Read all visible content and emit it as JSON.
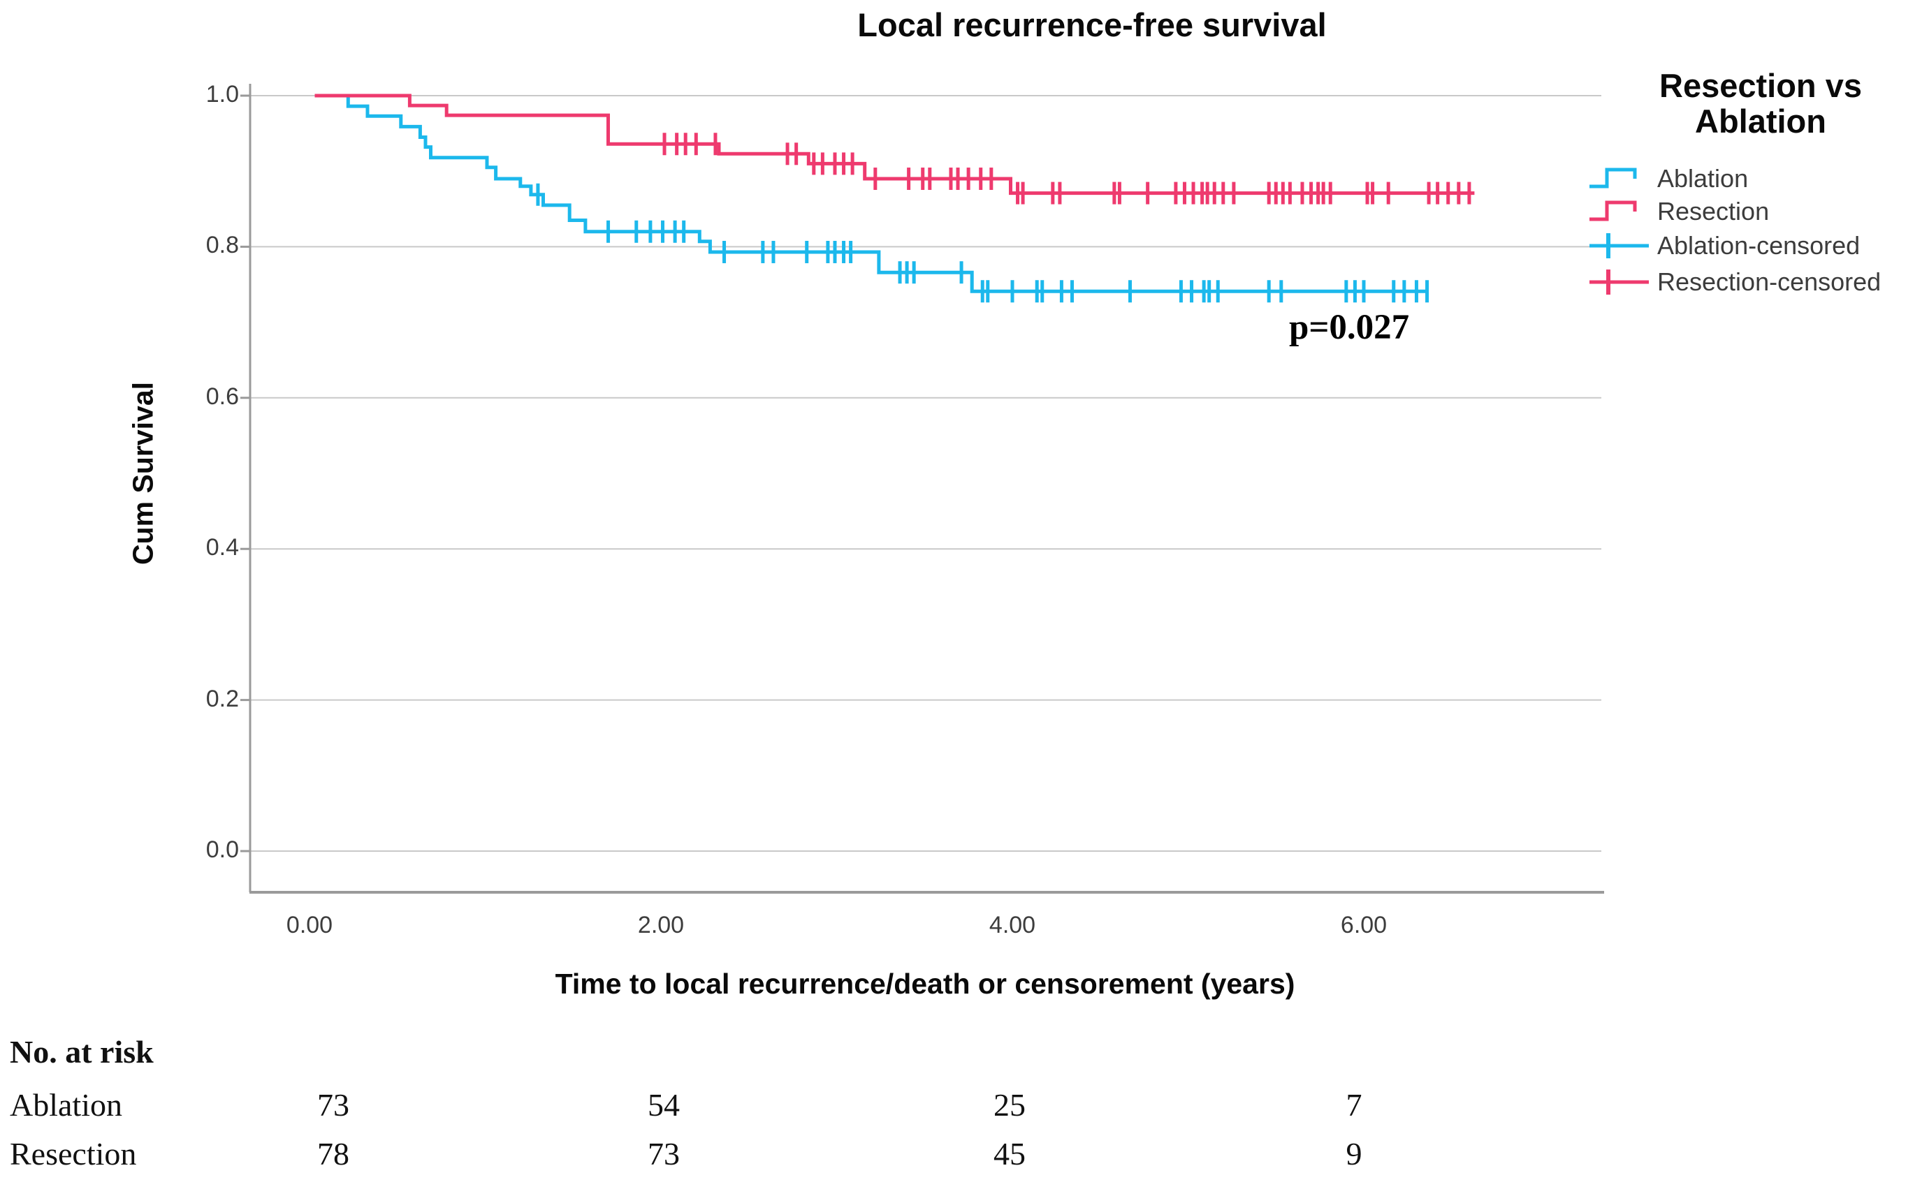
{
  "title": "Local recurrence-free survival",
  "annotation": {
    "p_value": "p=0.027"
  },
  "colors": {
    "ablation": "#1cb8ec",
    "resection": "#ee3a6e",
    "grid": "#c9c9c9",
    "axis": "#9a9a9a"
  },
  "legend": {
    "title_line1": "Resection vs",
    "title_line2": "Ablation",
    "entries": [
      {
        "label": "Ablation",
        "color": "#1cb8ec",
        "type": "step-line"
      },
      {
        "label": "Resection",
        "color": "#ee3a6e",
        "type": "step-line"
      },
      {
        "label": "Ablation-censored",
        "color": "#1cb8ec",
        "type": "censor-plus"
      },
      {
        "label": "Resection-censored",
        "color": "#ee3a6e",
        "type": "censor-plus"
      }
    ]
  },
  "risk_table": {
    "header": "No. at risk",
    "rows": [
      {
        "label": "Ablation",
        "values": [
          "73",
          "54",
          "25",
          "7"
        ]
      },
      {
        "label": "Resection",
        "values": [
          "78",
          "73",
          "45",
          "9"
        ]
      }
    ]
  },
  "chart_data": {
    "type": "line",
    "subtype": "kaplan-meier-step",
    "title": "Local recurrence-free survival",
    "xlabel": "Time to local recurrence/death or censorement (years)",
    "ylabel": "Cum Survival",
    "xlim": [
      0,
      7.35
    ],
    "ylim": [
      0,
      1.0
    ],
    "grid": "horizontal",
    "legend_position": "right",
    "x_ticks": [
      {
        "t": 0,
        "label": "0.00"
      },
      {
        "t": 2,
        "label": "2.00"
      },
      {
        "t": 4,
        "label": "4.00"
      },
      {
        "t": 6,
        "label": "6.00"
      }
    ],
    "y_ticks": [
      {
        "v": 0.0,
        "label": "0.0"
      },
      {
        "v": 0.2,
        "label": "0.2"
      },
      {
        "v": 0.4,
        "label": "0.4"
      },
      {
        "v": 0.6,
        "label": "0.6"
      },
      {
        "v": 0.8,
        "label": "0.8"
      },
      {
        "v": 1.0,
        "label": "1.0"
      }
    ],
    "series": [
      {
        "name": "Ablation",
        "color": "#1cb8ec",
        "n_start": 73,
        "steps": [
          [
            0.03,
            1.0
          ],
          [
            0.22,
            0.986
          ],
          [
            0.33,
            0.973
          ],
          [
            0.52,
            0.959
          ],
          [
            0.63,
            0.945
          ],
          [
            0.66,
            0.932
          ],
          [
            0.69,
            0.918
          ],
          [
            1.01,
            0.905
          ],
          [
            1.06,
            0.89
          ],
          [
            1.2,
            0.88
          ],
          [
            1.26,
            0.869
          ],
          [
            1.33,
            0.855
          ],
          [
            1.48,
            0.835
          ],
          [
            1.57,
            0.82
          ],
          [
            2.22,
            0.807
          ],
          [
            2.28,
            0.793
          ],
          [
            3.24,
            0.766
          ],
          [
            3.77,
            0.741
          ]
        ],
        "end_t": 6.36,
        "censors": [
          [
            1.3,
            0.869
          ],
          [
            1.7,
            0.82
          ],
          [
            1.86,
            0.82
          ],
          [
            1.94,
            0.82
          ],
          [
            2.01,
            0.82
          ],
          [
            2.08,
            0.82
          ],
          [
            2.13,
            0.82
          ],
          [
            2.36,
            0.793
          ],
          [
            2.58,
            0.793
          ],
          [
            2.64,
            0.793
          ],
          [
            2.83,
            0.793
          ],
          [
            2.95,
            0.793
          ],
          [
            2.99,
            0.793
          ],
          [
            3.04,
            0.793
          ],
          [
            3.08,
            0.793
          ],
          [
            3.36,
            0.766
          ],
          [
            3.4,
            0.766
          ],
          [
            3.44,
            0.766
          ],
          [
            3.71,
            0.766
          ],
          [
            3.83,
            0.741
          ],
          [
            3.86,
            0.741
          ],
          [
            4.0,
            0.741
          ],
          [
            4.14,
            0.741
          ],
          [
            4.17,
            0.741
          ],
          [
            4.28,
            0.741
          ],
          [
            4.34,
            0.741
          ],
          [
            4.67,
            0.741
          ],
          [
            4.96,
            0.741
          ],
          [
            5.02,
            0.741
          ],
          [
            5.09,
            0.741
          ],
          [
            5.12,
            0.741
          ],
          [
            5.17,
            0.741
          ],
          [
            5.46,
            0.741
          ],
          [
            5.53,
            0.741
          ],
          [
            5.9,
            0.741
          ],
          [
            5.95,
            0.741
          ],
          [
            6.0,
            0.741
          ],
          [
            6.17,
            0.741
          ],
          [
            6.23,
            0.741
          ],
          [
            6.3,
            0.741
          ],
          [
            6.36,
            0.741
          ]
        ]
      },
      {
        "name": "Resection",
        "color": "#ee3a6e",
        "n_start": 78,
        "steps": [
          [
            0.03,
            1.0
          ],
          [
            0.57,
            0.987
          ],
          [
            0.78,
            0.974
          ],
          [
            1.7,
            0.936
          ],
          [
            2.33,
            0.923
          ],
          [
            2.84,
            0.91
          ],
          [
            3.16,
            0.89
          ],
          [
            3.99,
            0.871
          ]
        ],
        "end_t": 6.63,
        "censors": [
          [
            2.02,
            0.936
          ],
          [
            2.09,
            0.936
          ],
          [
            2.14,
            0.936
          ],
          [
            2.2,
            0.936
          ],
          [
            2.31,
            0.936
          ],
          [
            2.72,
            0.923
          ],
          [
            2.77,
            0.923
          ],
          [
            2.87,
            0.91
          ],
          [
            2.92,
            0.91
          ],
          [
            2.99,
            0.91
          ],
          [
            3.04,
            0.91
          ],
          [
            3.09,
            0.91
          ],
          [
            3.22,
            0.89
          ],
          [
            3.41,
            0.89
          ],
          [
            3.49,
            0.89
          ],
          [
            3.53,
            0.89
          ],
          [
            3.65,
            0.89
          ],
          [
            3.69,
            0.89
          ],
          [
            3.75,
            0.89
          ],
          [
            3.82,
            0.89
          ],
          [
            3.88,
            0.89
          ],
          [
            4.03,
            0.871
          ],
          [
            4.06,
            0.871
          ],
          [
            4.23,
            0.871
          ],
          [
            4.27,
            0.871
          ],
          [
            4.58,
            0.871
          ],
          [
            4.61,
            0.871
          ],
          [
            4.77,
            0.871
          ],
          [
            4.93,
            0.871
          ],
          [
            4.98,
            0.871
          ],
          [
            5.03,
            0.871
          ],
          [
            5.08,
            0.871
          ],
          [
            5.11,
            0.871
          ],
          [
            5.15,
            0.871
          ],
          [
            5.2,
            0.871
          ],
          [
            5.26,
            0.871
          ],
          [
            5.46,
            0.871
          ],
          [
            5.5,
            0.871
          ],
          [
            5.54,
            0.871
          ],
          [
            5.58,
            0.871
          ],
          [
            5.65,
            0.871
          ],
          [
            5.7,
            0.871
          ],
          [
            5.74,
            0.871
          ],
          [
            5.77,
            0.871
          ],
          [
            5.81,
            0.871
          ],
          [
            6.02,
            0.871
          ],
          [
            6.05,
            0.871
          ],
          [
            6.14,
            0.871
          ],
          [
            6.37,
            0.871
          ],
          [
            6.42,
            0.871
          ],
          [
            6.48,
            0.871
          ],
          [
            6.54,
            0.871
          ],
          [
            6.6,
            0.871
          ]
        ]
      }
    ]
  }
}
